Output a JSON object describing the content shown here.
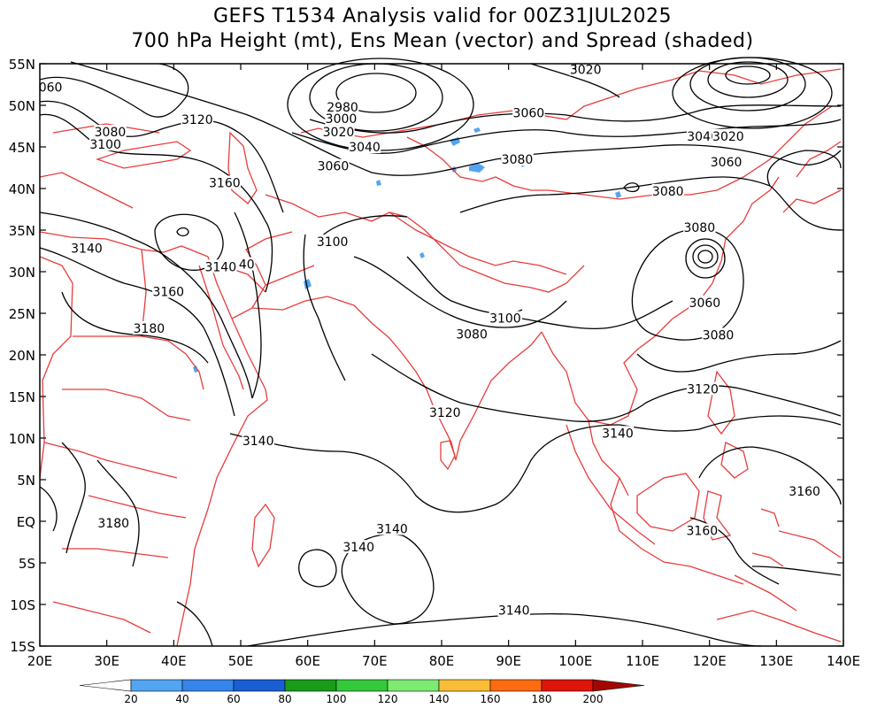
{
  "title_line1": "GEFS T1534 Analysis valid for 00Z31JUL2025",
  "title_line2": "700 hPa Height (mt), Ens Mean (vector) and Spread (shaded)",
  "map": {
    "lon_range": [
      20,
      140
    ],
    "lat_range": [
      -15,
      55
    ],
    "lon_ticks": [
      "20E",
      "30E",
      "40E",
      "50E",
      "60E",
      "70E",
      "80E",
      "90E",
      "100E",
      "110E",
      "120E",
      "130E",
      "140E"
    ],
    "lat_ticks": [
      "55N",
      "50N",
      "45N",
      "40N",
      "35N",
      "30N",
      "25N",
      "20N",
      "15N",
      "10N",
      "5N",
      "EQ",
      "5S",
      "10S",
      "15S"
    ],
    "contour_color": "#000000",
    "border_color": "#e83c3c"
  },
  "contour_labels": [
    {
      "text": "060",
      "lon": 21.6,
      "lat": 52.2
    },
    {
      "text": "3080",
      "lon": 30.5,
      "lat": 46.8
    },
    {
      "text": "3100",
      "lon": 29.8,
      "lat": 45.3
    },
    {
      "text": "3120",
      "lon": 43.5,
      "lat": 48.3
    },
    {
      "text": "2980",
      "lon": 65.2,
      "lat": 49.8
    },
    {
      "text": "3000",
      "lon": 65.0,
      "lat": 48.4
    },
    {
      "text": "3020",
      "lon": 64.6,
      "lat": 46.8
    },
    {
      "text": "3040",
      "lon": 68.5,
      "lat": 45.0
    },
    {
      "text": "3060",
      "lon": 63.8,
      "lat": 42.7
    },
    {
      "text": "3020",
      "lon": 101.5,
      "lat": 54.3
    },
    {
      "text": "3060",
      "lon": 93.0,
      "lat": 49.1
    },
    {
      "text": "3040",
      "lon": 119.0,
      "lat": 46.3
    },
    {
      "text": "3020",
      "lon": 122.8,
      "lat": 46.3
    },
    {
      "text": "3060",
      "lon": 122.5,
      "lat": 43.2
    },
    {
      "text": "3080",
      "lon": 91.3,
      "lat": 43.5
    },
    {
      "text": "3080",
      "lon": 113.8,
      "lat": 39.7
    },
    {
      "text": "3160",
      "lon": 47.6,
      "lat": 40.7
    },
    {
      "text": "3100",
      "lon": 63.7,
      "lat": 33.6
    },
    {
      "text": "3140",
      "lon": 27.0,
      "lat": 32.8
    },
    {
      "text": "3140",
      "lon": 47.0,
      "lat": 30.6
    },
    {
      "text": "40",
      "lon": 50.9,
      "lat": 30.9
    },
    {
      "text": "3160",
      "lon": 39.2,
      "lat": 27.6
    },
    {
      "text": "3180",
      "lon": 36.3,
      "lat": 23.2
    },
    {
      "text": "3080",
      "lon": 118.5,
      "lat": 35.3
    },
    {
      "text": "3060",
      "lon": 119.3,
      "lat": 26.3
    },
    {
      "text": "3100",
      "lon": 89.5,
      "lat": 24.4
    },
    {
      "text": "3080",
      "lon": 84.5,
      "lat": 22.5
    },
    {
      "text": "3080",
      "lon": 121.3,
      "lat": 22.4
    },
    {
      "text": "3120",
      "lon": 119.0,
      "lat": 15.9
    },
    {
      "text": "3120",
      "lon": 80.5,
      "lat": 13.1
    },
    {
      "text": "3140",
      "lon": 52.6,
      "lat": 9.7
    },
    {
      "text": "3140",
      "lon": 106.3,
      "lat": 10.6
    },
    {
      "text": "3160",
      "lon": 134.2,
      "lat": 3.6
    },
    {
      "text": "3180",
      "lon": 31.0,
      "lat": -0.2
    },
    {
      "text": "3140",
      "lon": 72.6,
      "lat": -0.9
    },
    {
      "text": "3140",
      "lon": 67.6,
      "lat": -3.1
    },
    {
      "text": "3160",
      "lon": 118.9,
      "lat": -1.1
    },
    {
      "text": "3140",
      "lon": 90.8,
      "lat": -10.7
    }
  ],
  "colorbar": {
    "ticks": [
      "20",
      "40",
      "60",
      "80",
      "100",
      "120",
      "140",
      "160",
      "180",
      "200"
    ],
    "colors": [
      "#ffffff",
      "#52a5f0",
      "#3585ea",
      "#1a5ed3",
      "#189c1a",
      "#33c93b",
      "#7dea72",
      "#fabd36",
      "#fb6b0f",
      "#e01408",
      "#a30800"
    ]
  }
}
